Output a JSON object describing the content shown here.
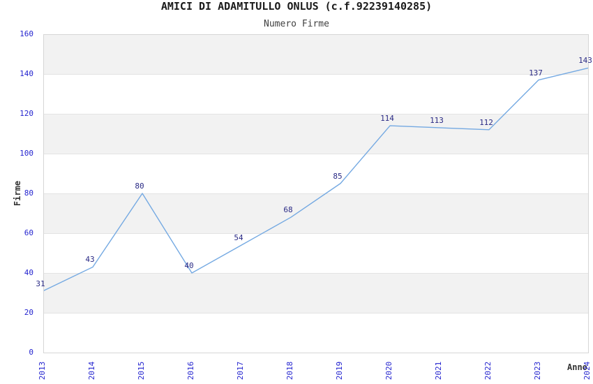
{
  "header": {
    "title": "AMICI DI ADAMITULLO ONLUS (c.f.92239140285)",
    "subtitle": "Numero Firme"
  },
  "chart_data": {
    "type": "line",
    "x": [
      "2013",
      "2014",
      "2015",
      "2016",
      "2017",
      "2018",
      "2019",
      "2020",
      "2021",
      "2022",
      "2023",
      "2024"
    ],
    "series": [
      {
        "name": "Numero Firme",
        "values": [
          31,
          43,
          80,
          40,
          54,
          68,
          85,
          114,
          113,
          112,
          137,
          143
        ]
      }
    ],
    "title": "AMICI DI ADAMITULLO ONLUS (c.f.92239140285)",
    "subtitle": "Numero Firme",
    "xlabel": "Anno",
    "ylabel": "Firme",
    "ylim": [
      0,
      160
    ],
    "yticks": [
      0,
      20,
      40,
      60,
      80,
      100,
      120,
      140,
      160
    ],
    "grid": "horizontal-bands-every-20",
    "legend": "none",
    "data_labels_shown": true,
    "colors": {
      "line": "#74a9e2",
      "tick_label": "#2424cf",
      "data_label": "#2a2a85",
      "band_gray": "#f2f2f2",
      "band_white": "#ffffff",
      "gridline": "#e3e3e3",
      "plot_border": "#d6d6d6",
      "axis_text": "#333333",
      "title_text": "#1a1a1a",
      "subtitle_text": "#404040"
    }
  }
}
